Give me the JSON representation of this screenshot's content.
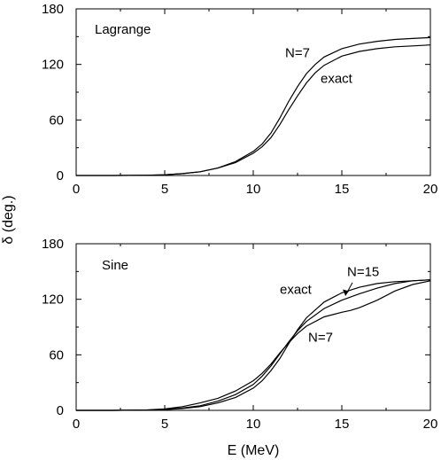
{
  "ylabel": "δ (deg.)",
  "xlabel": "E (MeV)",
  "chart_data": [
    {
      "type": "line",
      "title": "",
      "panel_label": "Lagrange",
      "xlim": [
        0,
        20
      ],
      "ylim": [
        0,
        180
      ],
      "xticks": [
        0,
        5,
        10,
        15,
        20
      ],
      "yticks": [
        0,
        60,
        120,
        180
      ],
      "grid": false,
      "series": [
        {
          "name": "N=7",
          "x": [
            0,
            1,
            2,
            3,
            4,
            5,
            6,
            7,
            8,
            9,
            10,
            10.5,
            11,
            11.5,
            12,
            12.5,
            13,
            13.5,
            14,
            15,
            16,
            17,
            18,
            19,
            20
          ],
          "y": [
            0,
            0,
            0,
            0.1,
            0.3,
            0.8,
            2,
            4,
            8,
            15,
            26,
            34,
            46,
            62,
            80,
            96,
            110,
            120,
            128,
            137,
            142,
            145,
            147,
            148,
            149
          ]
        },
        {
          "name": "exact",
          "x": [
            0,
            1,
            2,
            3,
            4,
            5,
            6,
            7,
            8,
            9,
            10,
            10.5,
            11,
            11.5,
            12,
            12.5,
            13,
            13.5,
            14,
            15,
            16,
            17,
            18,
            19,
            20
          ],
          "y": [
            0,
            0,
            0,
            0.1,
            0.3,
            0.8,
            2,
            4,
            8,
            14,
            24,
            31,
            41,
            55,
            71,
            86,
            100,
            111,
            119,
            129,
            134,
            137,
            139,
            140,
            141
          ]
        }
      ],
      "annotations": [
        {
          "text": "N=7",
          "x": 11.8,
          "y": 128
        },
        {
          "text": "exact",
          "x": 13.8,
          "y": 100
        }
      ]
    },
    {
      "type": "line",
      "title": "",
      "panel_label": "Sine",
      "xlim": [
        0,
        20
      ],
      "ylim": [
        0,
        180
      ],
      "xticks": [
        0,
        5,
        10,
        15,
        20
      ],
      "yticks": [
        0,
        60,
        120,
        180
      ],
      "grid": false,
      "series": [
        {
          "name": "exact",
          "x": [
            0,
            2,
            4,
            5,
            6,
            7,
            8,
            9,
            10,
            10.5,
            11,
            11.5,
            12,
            12.5,
            13,
            14,
            15,
            16,
            17,
            18,
            19,
            20
          ],
          "y": [
            0,
            0,
            0.3,
            0.8,
            2,
            4,
            8,
            14,
            24,
            32,
            43,
            56,
            72,
            87,
            100,
            117,
            127,
            133,
            137,
            139,
            140,
            141
          ]
        },
        {
          "name": "N=15",
          "x": [
            0,
            2,
            4,
            5,
            6,
            7,
            8,
            9,
            10,
            10.5,
            11,
            11.5,
            12,
            12.5,
            13,
            14,
            15,
            16,
            17,
            18,
            19,
            20
          ],
          "y": [
            0,
            0,
            0.3,
            1,
            2.5,
            5,
            10,
            17,
            28,
            37,
            48,
            61,
            74,
            86,
            96,
            110,
            119,
            126,
            132,
            137,
            140,
            141
          ]
        },
        {
          "name": "N=7",
          "x": [
            0,
            2,
            4,
            5,
            6,
            7,
            8,
            9,
            10,
            10.5,
            11,
            11.5,
            12,
            12.5,
            13,
            14,
            15,
            15.5,
            16,
            17,
            18,
            19,
            20
          ],
          "y": [
            0,
            0,
            0.5,
            1.5,
            4,
            8,
            13,
            21,
            32,
            40,
            50,
            62,
            73,
            83,
            91,
            101,
            106,
            108,
            111,
            119,
            129,
            136,
            140
          ]
        }
      ],
      "annotations": [
        {
          "text": "exact",
          "x": 11.5,
          "y": 126
        },
        {
          "text": "N=15",
          "x": 15.3,
          "y": 145
        },
        {
          "text": "N=7",
          "x": 13.1,
          "y": 74
        }
      ]
    }
  ]
}
